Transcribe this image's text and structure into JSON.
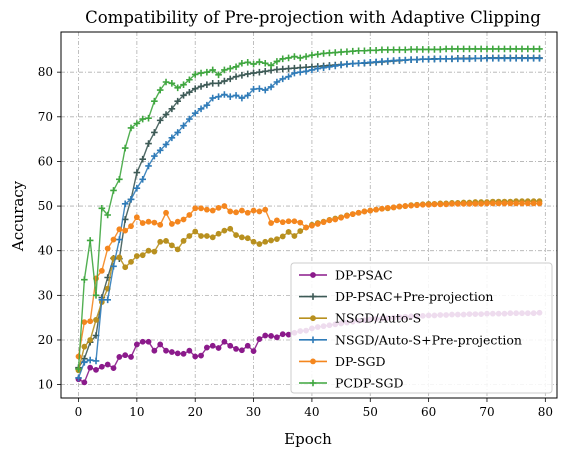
{
  "chart_data": {
    "type": "line",
    "title": "Compatibility of Pre-projection with Adaptive Clipping",
    "xlabel": "Epoch",
    "ylabel": "Accuracy",
    "xlim": [
      -3,
      82
    ],
    "ylim": [
      7,
      89
    ],
    "xticks": [
      0,
      10,
      20,
      30,
      40,
      50,
      60,
      70,
      80
    ],
    "yticks": [
      10,
      20,
      30,
      40,
      50,
      60,
      70,
      80
    ],
    "grid": true,
    "legend_position": "lower-right",
    "x": [
      0,
      1,
      2,
      3,
      4,
      5,
      6,
      7,
      8,
      9,
      10,
      11,
      12,
      13,
      14,
      15,
      16,
      17,
      18,
      19,
      20,
      21,
      22,
      23,
      24,
      25,
      26,
      27,
      28,
      29,
      30,
      31,
      32,
      33,
      34,
      35,
      36,
      37,
      38,
      39,
      40,
      41,
      42,
      43,
      44,
      45,
      46,
      47,
      48,
      49,
      50,
      51,
      52,
      53,
      54,
      55,
      56,
      57,
      58,
      59,
      60,
      61,
      62,
      63,
      64,
      65,
      66,
      67,
      68,
      69,
      70,
      71,
      72,
      73,
      74,
      75,
      76,
      77,
      78,
      79
    ],
    "series": [
      {
        "name": "DP-PSAC",
        "color": "#8b1a8b",
        "marker": "circle",
        "values": [
          11.2,
          10.5,
          13.8,
          13.3,
          14.0,
          14.5,
          13.7,
          16.2,
          16.6,
          16.2,
          19.0,
          19.6,
          19.6,
          17.6,
          19.0,
          17.6,
          17.3,
          17.0,
          16.9,
          17.6,
          16.3,
          16.5,
          18.3,
          18.7,
          18.2,
          19.6,
          18.7,
          18.0,
          17.7,
          18.7,
          17.5,
          20.2,
          21.0,
          20.9,
          20.6,
          21.3,
          21.2,
          21.6,
          22.0,
          22.1,
          22.6,
          22.9,
          23.1,
          23.3,
          23.5,
          23.7,
          23.9,
          24.1,
          24.3,
          24.4,
          24.6,
          24.7,
          24.8,
          24.9,
          25.0,
          25.1,
          25.2,
          25.3,
          25.3,
          25.4,
          25.5,
          25.5,
          25.6,
          25.6,
          25.7,
          25.7,
          25.7,
          25.8,
          25.8,
          25.8,
          25.9,
          25.9,
          25.9,
          25.9,
          26.0,
          26.0,
          26.0,
          26.0,
          26.0,
          26.1
        ]
      },
      {
        "name": "DP-PSAC+Pre-projection",
        "color": "#3d5a56",
        "marker": "plus",
        "values": [
          13.8,
          15.8,
          19.5,
          21.0,
          29.5,
          34.0,
          38.3,
          38.2,
          47.0,
          51.5,
          57.5,
          60.5,
          64.0,
          66.5,
          69.2,
          70.5,
          71.8,
          73.5,
          74.8,
          75.5,
          76.3,
          76.8,
          77.2,
          77.5,
          77.5,
          78.0,
          78.5,
          79.0,
          79.3,
          79.6,
          79.8,
          80.0,
          80.2,
          80.4,
          80.6,
          80.7,
          80.8,
          80.9,
          81.0,
          81.1,
          81.2,
          81.3,
          81.4,
          81.5,
          81.6,
          81.7,
          81.8,
          81.9,
          82.0,
          82.0,
          82.1,
          82.2,
          82.3,
          82.4,
          82.5,
          82.6,
          82.7,
          82.8,
          82.8,
          82.9,
          82.9,
          83.0,
          83.0,
          83.0,
          83.0,
          83.1,
          83.1,
          83.1,
          83.1,
          83.1,
          83.2,
          83.2,
          83.2,
          83.2,
          83.2,
          83.2,
          83.2,
          83.2,
          83.2,
          83.2
        ]
      },
      {
        "name": "NSGD/Auto-S",
        "color": "#b8901f",
        "marker": "circle",
        "values": [
          13.2,
          18.5,
          20.0,
          24.5,
          28.5,
          31.5,
          38.3,
          38.5,
          36.3,
          37.5,
          38.8,
          39.0,
          40.0,
          39.8,
          42.0,
          42.2,
          41.2,
          40.3,
          42.2,
          43.3,
          44.3,
          43.3,
          43.3,
          43.0,
          43.8,
          44.5,
          44.9,
          43.5,
          43.0,
          42.8,
          42.0,
          41.5,
          42.0,
          42.3,
          42.6,
          43.2,
          44.2,
          43.3,
          44.4,
          45.2,
          45.8,
          46.2,
          46.5,
          46.9,
          47.2,
          47.5,
          47.9,
          48.2,
          48.5,
          48.8,
          49.0,
          49.2,
          49.4,
          49.5,
          49.7,
          49.9,
          50.0,
          50.2,
          50.3,
          50.4,
          50.5,
          50.5,
          50.6,
          50.6,
          50.7,
          50.7,
          50.8,
          50.8,
          50.9,
          50.9,
          50.9,
          51.0,
          51.0,
          51.0,
          51.0,
          51.1,
          51.1,
          51.1,
          51.1,
          51.1
        ]
      },
      {
        "name": "NSGD/Auto-S+Pre-projection",
        "color": "#2f7bb8",
        "marker": "plus",
        "values": [
          11.5,
          15.0,
          15.5,
          15.3,
          29.0,
          29.0,
          36.5,
          42.5,
          50.5,
          51.5,
          54.0,
          56.0,
          59.0,
          61.2,
          62.5,
          63.8,
          65.3,
          66.5,
          68.0,
          69.5,
          70.8,
          71.8,
          72.6,
          74.2,
          74.5,
          75.0,
          74.5,
          74.8,
          74.2,
          74.8,
          76.2,
          76.3,
          76.0,
          76.7,
          77.8,
          78.5,
          79.0,
          79.8,
          80.0,
          80.2,
          80.5,
          80.8,
          81.0,
          81.2,
          81.4,
          81.6,
          81.8,
          81.9,
          82.0,
          82.1,
          82.2,
          82.3,
          82.4,
          82.5,
          82.6,
          82.7,
          82.7,
          82.8,
          82.8,
          82.9,
          82.9,
          82.9,
          83.0,
          83.0,
          83.0,
          83.0,
          83.0,
          83.0,
          83.1,
          83.1,
          83.1,
          83.1,
          83.1,
          83.1,
          83.1,
          83.1,
          83.1,
          83.1,
          83.1,
          83.1
        ]
      },
      {
        "name": "DP-SGD",
        "color": "#f4861e",
        "marker": "circle",
        "values": [
          16.3,
          24.0,
          24.2,
          33.8,
          35.5,
          40.5,
          42.5,
          44.8,
          44.5,
          45.5,
          47.5,
          46.2,
          46.5,
          46.3,
          45.8,
          48.5,
          46.0,
          46.5,
          47.0,
          48.0,
          49.5,
          49.5,
          49.2,
          49.0,
          49.6,
          50.0,
          48.8,
          48.6,
          49.0,
          48.5,
          49.0,
          48.8,
          49.2,
          46.2,
          46.8,
          46.4,
          46.6,
          46.6,
          46.3,
          45.2,
          45.6,
          46.0,
          46.4,
          46.8,
          47.0,
          47.4,
          47.8,
          48.2,
          48.5,
          48.8,
          49.0,
          49.2,
          49.4,
          49.6,
          49.7,
          49.9,
          50.0,
          50.1,
          50.2,
          50.3,
          50.3,
          50.4,
          50.4,
          50.4,
          50.5,
          50.5,
          50.5,
          50.5,
          50.5,
          50.5,
          50.6,
          50.6,
          50.6,
          50.6,
          50.6,
          50.6,
          50.6,
          50.6,
          50.6,
          50.6
        ]
      },
      {
        "name": "PCDP-SGD",
        "color": "#3fa63f",
        "marker": "plus",
        "values": [
          13.5,
          33.5,
          42.3,
          30.0,
          49.5,
          48.0,
          53.5,
          56.0,
          63.0,
          67.5,
          68.5,
          69.5,
          69.7,
          73.5,
          76.0,
          77.8,
          77.5,
          76.5,
          77.2,
          78.3,
          79.5,
          79.8,
          80.0,
          80.5,
          79.4,
          80.5,
          80.8,
          81.2,
          82.0,
          82.2,
          81.8,
          82.3,
          82.0,
          81.5,
          82.4,
          83.0,
          83.2,
          83.5,
          83.2,
          83.5,
          83.8,
          84.0,
          84.2,
          84.3,
          84.4,
          84.5,
          84.6,
          84.7,
          84.8,
          84.8,
          84.9,
          84.9,
          85.0,
          85.0,
          85.0,
          85.0,
          85.0,
          85.1,
          85.1,
          85.1,
          85.1,
          85.1,
          85.1,
          85.2,
          85.2,
          85.2,
          85.2,
          85.2,
          85.2,
          85.2,
          85.2,
          85.2,
          85.2,
          85.2,
          85.2,
          85.2,
          85.2,
          85.2,
          85.2,
          85.2
        ]
      }
    ]
  }
}
